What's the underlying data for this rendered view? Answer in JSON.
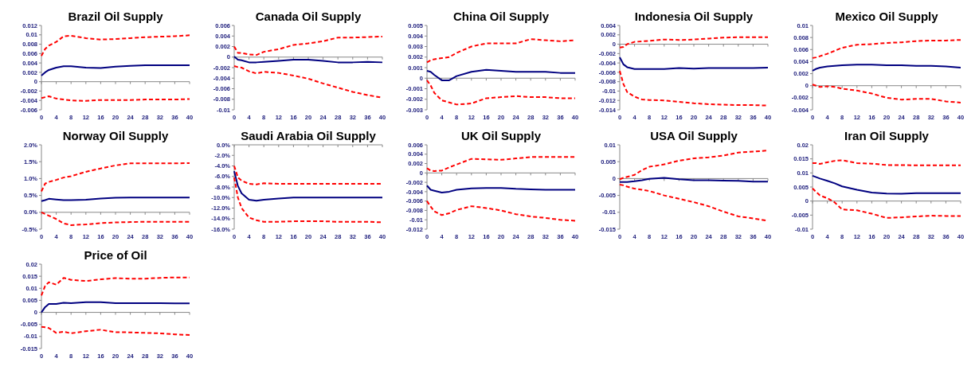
{
  "chart_data": [
    {
      "type": "line",
      "title": "Brazil Oil Supply",
      "x": [
        0,
        1,
        2,
        4,
        6,
        8,
        12,
        16,
        20,
        24,
        28,
        32,
        36,
        40
      ],
      "xlim": [
        0,
        40
      ],
      "xticks": [
        0,
        4,
        8,
        12,
        16,
        20,
        24,
        28,
        32,
        36,
        40
      ],
      "ylim": [
        -0.006,
        0.012
      ],
      "yticks": [
        -0.006,
        -0.004,
        -0.002,
        0,
        0.002,
        0.004,
        0.006,
        0.008,
        0.01,
        0.012
      ],
      "series": [
        {
          "color": "#000080",
          "line_style": "solid",
          "values": [
            0.0013,
            0.002,
            0.0025,
            0.003,
            0.0033,
            0.0033,
            0.003,
            0.0029,
            0.0032,
            0.0034,
            0.0035,
            0.0035,
            0.0035,
            0.0035
          ]
        },
        {
          "color": "#ff0000",
          "line_style": "dashed",
          "values": [
            0.0055,
            0.007,
            0.0077,
            0.0085,
            0.0097,
            0.0098,
            0.0093,
            0.009,
            0.0091,
            0.0093,
            0.0095,
            0.0096,
            0.0097,
            0.0099
          ]
        },
        {
          "color": "#ff0000",
          "line_style": "dashed",
          "values": [
            -0.0035,
            -0.0033,
            -0.0031,
            -0.0036,
            -0.0038,
            -0.004,
            -0.0041,
            -0.0039,
            -0.0039,
            -0.0039,
            -0.0038,
            -0.0038,
            -0.0038,
            -0.0037
          ]
        }
      ]
    },
    {
      "type": "line",
      "title": "Canada Oil Supply",
      "x": [
        0,
        1,
        2,
        4,
        6,
        8,
        12,
        16,
        20,
        24,
        28,
        32,
        36,
        40
      ],
      "xlim": [
        0,
        40
      ],
      "xticks": [
        0,
        4,
        8,
        12,
        16,
        20,
        24,
        28,
        32,
        36,
        40
      ],
      "ylim": [
        -0.01,
        0.006
      ],
      "yticks": [
        -0.01,
        -0.008,
        -0.006,
        -0.004,
        -0.002,
        0,
        0.002,
        0.004,
        0.006
      ],
      "series": [
        {
          "color": "#000080",
          "line_style": "solid",
          "values": [
            0.0001,
            -0.0005,
            -0.0006,
            -0.001,
            -0.001,
            -0.0009,
            -0.0007,
            -0.0005,
            -0.0005,
            -0.0007,
            -0.001,
            -0.001,
            -0.0009,
            -0.001
          ]
        },
        {
          "color": "#ff0000",
          "line_style": "dashed",
          "values": [
            0.002,
            0.0008,
            0.0008,
            0.0005,
            0.0004,
            0.001,
            0.0015,
            0.0023,
            0.0026,
            0.003,
            0.0037,
            0.0037,
            0.0038,
            0.0039
          ]
        },
        {
          "color": "#ff0000",
          "line_style": "dashed",
          "values": [
            -0.0017,
            -0.0019,
            -0.002,
            -0.0027,
            -0.0031,
            -0.0028,
            -0.003,
            -0.0035,
            -0.0041,
            -0.005,
            -0.0058,
            -0.0066,
            -0.0072,
            -0.0077
          ]
        }
      ]
    },
    {
      "type": "line",
      "title": "China Oil Supply",
      "x": [
        0,
        1,
        2,
        4,
        6,
        8,
        12,
        16,
        20,
        24,
        28,
        32,
        36,
        40
      ],
      "xlim": [
        0,
        40
      ],
      "xticks": [
        0,
        4,
        8,
        12,
        16,
        20,
        24,
        28,
        32,
        36,
        40
      ],
      "ylim": [
        -0.003,
        0.005
      ],
      "yticks": [
        -0.003,
        -0.002,
        -0.001,
        0,
        0.001,
        0.002,
        0.003,
        0.004,
        0.005
      ],
      "series": [
        {
          "color": "#000080",
          "line_style": "solid",
          "values": [
            0.0007,
            0.0006,
            0.0003,
            -0.0002,
            -0.0002,
            0.0002,
            0.0006,
            0.0008,
            0.0007,
            0.0006,
            0.0006,
            0.0006,
            0.0005,
            0.0005
          ]
        },
        {
          "color": "#ff0000",
          "line_style": "dashed",
          "values": [
            0.0015,
            0.0017,
            0.0018,
            0.0019,
            0.002,
            0.0024,
            0.003,
            0.0033,
            0.0033,
            0.0033,
            0.0037,
            0.0036,
            0.0035,
            0.0036
          ]
        },
        {
          "color": "#ff0000",
          "line_style": "dashed",
          "values": [
            -0.0002,
            -0.0007,
            -0.0014,
            -0.0021,
            -0.0023,
            -0.0025,
            -0.0024,
            -0.0019,
            -0.0018,
            -0.0017,
            -0.0018,
            -0.0018,
            -0.0019,
            -0.0019
          ]
        }
      ]
    },
    {
      "type": "line",
      "title": "Indonesia Oil Supply",
      "x": [
        0,
        1,
        2,
        4,
        6,
        8,
        12,
        16,
        20,
        24,
        28,
        32,
        36,
        40
      ],
      "xlim": [
        0,
        40
      ],
      "xticks": [
        0,
        4,
        8,
        12,
        16,
        20,
        24,
        28,
        32,
        36,
        40
      ],
      "ylim": [
        -0.014,
        0.004
      ],
      "yticks": [
        -0.014,
        -0.012,
        -0.01,
        -0.008,
        -0.006,
        -0.004,
        -0.002,
        0,
        0.002,
        0.004
      ],
      "series": [
        {
          "color": "#000080",
          "line_style": "solid",
          "values": [
            -0.0028,
            -0.0043,
            -0.0049,
            -0.0053,
            -0.0053,
            -0.0053,
            -0.0053,
            -0.0051,
            -0.0052,
            -0.0051,
            -0.0051,
            -0.0051,
            -0.0051,
            -0.005
          ]
        },
        {
          "color": "#ff0000",
          "line_style": "dashed",
          "values": [
            -0.0007,
            -0.0006,
            0,
            0.0005,
            0.0006,
            0.0007,
            0.001,
            0.0009,
            0.001,
            0.0012,
            0.0014,
            0.0015,
            0.0015,
            0.0015
          ]
        },
        {
          "color": "#ff0000",
          "line_style": "dashed",
          "values": [
            -0.0057,
            -0.0085,
            -0.0102,
            -0.0112,
            -0.0118,
            -0.0119,
            -0.012,
            -0.0123,
            -0.0126,
            -0.0128,
            -0.0129,
            -0.013,
            -0.013,
            -0.0131
          ]
        }
      ]
    },
    {
      "type": "line",
      "title": "Mexico Oil Supply",
      "x": [
        0,
        1,
        2,
        4,
        6,
        8,
        12,
        16,
        20,
        24,
        28,
        32,
        36,
        40
      ],
      "xlim": [
        0,
        40
      ],
      "xticks": [
        0,
        4,
        8,
        12,
        16,
        20,
        24,
        28,
        32,
        36,
        40
      ],
      "ylim": [
        -0.004,
        0.01
      ],
      "yticks": [
        -0.004,
        -0.002,
        0,
        0.002,
        0.004,
        0.006,
        0.008,
        0.01
      ],
      "series": [
        {
          "color": "#000080",
          "line_style": "solid",
          "values": [
            0.0025,
            0.0028,
            0.003,
            0.0032,
            0.0033,
            0.0034,
            0.0035,
            0.0035,
            0.0034,
            0.0034,
            0.0033,
            0.0033,
            0.0032,
            0.003
          ]
        },
        {
          "color": "#ff0000",
          "line_style": "dashed",
          "values": [
            0.0046,
            0.0047,
            0.0049,
            0.0053,
            0.0058,
            0.0063,
            0.0068,
            0.0069,
            0.0071,
            0.0072,
            0.0074,
            0.0075,
            0.0075,
            0.0076
          ]
        },
        {
          "color": "#ff0000",
          "line_style": "dashed",
          "values": [
            0.0002,
            0,
            -0.0002,
            -0.0001,
            -0.0002,
            -0.0005,
            -0.0008,
            -0.0013,
            -0.002,
            -0.0023,
            -0.0022,
            -0.0022,
            -0.0026,
            -0.0028
          ]
        }
      ]
    },
    {
      "type": "line",
      "title": "Norway Oil Supply",
      "x": [
        0,
        1,
        2,
        4,
        6,
        8,
        12,
        16,
        20,
        24,
        28,
        32,
        36,
        40
      ],
      "xlim": [
        0,
        40
      ],
      "xticks": [
        0,
        4,
        8,
        12,
        16,
        20,
        24,
        28,
        32,
        36,
        40
      ],
      "ylim": [
        -0.5,
        2.0
      ],
      "yticks": [
        {
          "value": -0.5,
          "label": "-0.5%"
        },
        {
          "value": 0,
          "label": "0.0%"
        },
        {
          "value": 0.5,
          "label": "0.5%"
        },
        {
          "value": 1,
          "label": "1.0%"
        },
        {
          "value": 1.5,
          "label": "1.5%"
        },
        {
          "value": 2,
          "label": "2.0%"
        }
      ],
      "series": [
        {
          "color": "#000080",
          "line_style": "solid",
          "values": [
            0.33,
            0.36,
            0.4,
            0.38,
            0.36,
            0.36,
            0.37,
            0.41,
            0.43,
            0.44,
            0.44,
            0.44,
            0.44,
            0.44
          ]
        },
        {
          "color": "#ff0000",
          "line_style": "dashed",
          "values": [
            0.62,
            0.85,
            0.9,
            0.96,
            1.03,
            1.07,
            1.2,
            1.3,
            1.39,
            1.45,
            1.45,
            1.45,
            1.45,
            1.46
          ]
        },
        {
          "color": "#ff0000",
          "line_style": "dashed",
          "values": [
            0,
            -0.05,
            -0.1,
            -0.2,
            -0.33,
            -0.38,
            -0.36,
            -0.32,
            -0.3,
            -0.29,
            -0.28,
            -0.28,
            -0.28,
            -0.28
          ]
        }
      ]
    },
    {
      "type": "line",
      "title": "Saudi Arabia Oil Supply",
      "x": [
        0,
        1,
        2,
        4,
        6,
        8,
        12,
        16,
        20,
        24,
        28,
        32,
        36,
        40
      ],
      "xlim": [
        0,
        40
      ],
      "xticks": [
        0,
        4,
        8,
        12,
        16,
        20,
        24,
        28,
        32,
        36,
        40
      ],
      "ylim": [
        -16,
        0
      ],
      "yticks": [
        {
          "value": -16,
          "label": "-16.0%"
        },
        {
          "value": -14,
          "label": "-14.0%"
        },
        {
          "value": -12,
          "label": "-12.0%"
        },
        {
          "value": -10,
          "label": "-10.0%"
        },
        {
          "value": -8,
          "label": "-8.0%"
        },
        {
          "value": -6,
          "label": "-6.0%"
        },
        {
          "value": -4,
          "label": "-4.0%"
        },
        {
          "value": -2,
          "label": "-2.0%"
        },
        {
          "value": 0,
          "label": "0.0%"
        }
      ],
      "series": [
        {
          "color": "#000080",
          "line_style": "solid",
          "values": [
            -5,
            -7.8,
            -9.2,
            -10.4,
            -10.6,
            -10.4,
            -10.2,
            -10,
            -10,
            -10,
            -10,
            -10,
            -10,
            -10
          ]
        },
        {
          "color": "#ff0000",
          "line_style": "dashed",
          "values": [
            -4,
            -6.2,
            -6.8,
            -7.4,
            -7.5,
            -7.3,
            -7.4,
            -7.4,
            -7.4,
            -7.4,
            -7.4,
            -7.4,
            -7.4,
            -7.4
          ]
        },
        {
          "color": "#ff0000",
          "line_style": "dashed",
          "values": [
            -6.2,
            -10,
            -12,
            -13.8,
            -14.3,
            -14.6,
            -14.6,
            -14.5,
            -14.5,
            -14.5,
            -14.6,
            -14.6,
            -14.6,
            -14.7
          ]
        }
      ]
    },
    {
      "type": "line",
      "title": "UK Oil Supply",
      "x": [
        0,
        1,
        2,
        4,
        6,
        8,
        12,
        16,
        20,
        24,
        28,
        32,
        36,
        40
      ],
      "xlim": [
        0,
        40
      ],
      "xticks": [
        0,
        4,
        8,
        12,
        16,
        20,
        24,
        28,
        32,
        36,
        40
      ],
      "ylim": [
        -0.012,
        0.006
      ],
      "yticks": [
        -0.012,
        -0.01,
        -0.008,
        -0.006,
        -0.004,
        -0.002,
        0,
        0.002,
        0.004,
        0.006
      ],
      "series": [
        {
          "color": "#000080",
          "line_style": "solid",
          "values": [
            -0.0027,
            -0.0036,
            -0.0038,
            -0.0042,
            -0.004,
            -0.0036,
            -0.0033,
            -0.0032,
            -0.0032,
            -0.0034,
            -0.0035,
            -0.0036,
            -0.0036,
            -0.0036
          ]
        },
        {
          "color": "#ff0000",
          "line_style": "dashed",
          "values": [
            0.001,
            0.0005,
            0.0004,
            0.0005,
            0.0012,
            0.0018,
            0.003,
            0.0029,
            0.0028,
            0.0031,
            0.0034,
            0.0034,
            0.0034,
            0.0034
          ]
        },
        {
          "color": "#ff0000",
          "line_style": "dashed",
          "values": [
            -0.006,
            -0.0072,
            -0.0082,
            -0.009,
            -0.0086,
            -0.0079,
            -0.0071,
            -0.0075,
            -0.008,
            -0.0088,
            -0.0093,
            -0.0096,
            -0.01,
            -0.0102
          ]
        }
      ]
    },
    {
      "type": "line",
      "title": "USA Oil Supply",
      "x": [
        0,
        1,
        2,
        4,
        6,
        8,
        12,
        16,
        20,
        24,
        28,
        32,
        36,
        40
      ],
      "xlim": [
        0,
        40
      ],
      "xticks": [
        0,
        4,
        8,
        12,
        16,
        20,
        24,
        28,
        32,
        36,
        40
      ],
      "ylim": [
        -0.015,
        0.01
      ],
      "yticks": [
        -0.015,
        -0.01,
        -0.005,
        0,
        0.005,
        0.01
      ],
      "series": [
        {
          "color": "#000080",
          "line_style": "solid",
          "values": [
            -0.001,
            -0.001,
            -0.001,
            -0.0008,
            -0.0005,
            -0.0001,
            0.0002,
            -0.0002,
            -0.0005,
            -0.0005,
            -0.0006,
            -0.0007,
            -0.0009,
            -0.0009
          ]
        },
        {
          "color": "#ff0000",
          "line_style": "dashed",
          "values": [
            -0.0002,
            0.0002,
            0.0005,
            0.0011,
            0.0025,
            0.0035,
            0.0042,
            0.0053,
            0.006,
            0.0063,
            0.0068,
            0.0077,
            0.008,
            0.0083
          ]
        },
        {
          "color": "#ff0000",
          "line_style": "dashed",
          "values": [
            -0.0018,
            -0.002,
            -0.0024,
            -0.003,
            -0.0033,
            -0.0037,
            -0.005,
            -0.006,
            -0.007,
            -0.0082,
            -0.0098,
            -0.0112,
            -0.0118,
            -0.0125
          ]
        }
      ]
    },
    {
      "type": "line",
      "title": "Iran Oil Supply",
      "x": [
        0,
        1,
        2,
        4,
        6,
        8,
        12,
        16,
        20,
        24,
        28,
        32,
        36,
        40
      ],
      "xlim": [
        0,
        40
      ],
      "xticks": [
        0,
        4,
        8,
        12,
        16,
        20,
        24,
        28,
        32,
        36,
        40
      ],
      "ylim": [
        -0.01,
        0.02
      ],
      "yticks": [
        -0.01,
        -0.005,
        0,
        0.005,
        0.01,
        0.015,
        0.02
      ],
      "series": [
        {
          "color": "#000080",
          "line_style": "solid",
          "values": [
            0.009,
            0.0085,
            0.008,
            0.0072,
            0.0063,
            0.0052,
            0.004,
            0.003,
            0.0027,
            0.0026,
            0.0028,
            0.0028,
            0.0028,
            0.0028
          ]
        },
        {
          "color": "#ff0000",
          "line_style": "dashed",
          "values": [
            0.0135,
            0.0135,
            0.0132,
            0.0138,
            0.0143,
            0.0145,
            0.0135,
            0.0133,
            0.0128,
            0.0128,
            0.0127,
            0.0127,
            0.0127,
            0.0127
          ]
        },
        {
          "color": "#ff0000",
          "line_style": "dashed",
          "values": [
            0.0045,
            0.0032,
            0.002,
            0.001,
            -0.0005,
            -0.003,
            -0.0033,
            -0.0045,
            -0.006,
            -0.0058,
            -0.0055,
            -0.0052,
            -0.0053,
            -0.0053
          ]
        }
      ]
    },
    {
      "type": "line",
      "title": "Price of Oil",
      "x": [
        0,
        1,
        2,
        4,
        6,
        8,
        12,
        16,
        20,
        24,
        28,
        32,
        36,
        40
      ],
      "xlim": [
        0,
        40
      ],
      "xticks": [
        0,
        4,
        8,
        12,
        16,
        20,
        24,
        28,
        32,
        36,
        40
      ],
      "ylim": [
        -0.015,
        0.02
      ],
      "yticks": [
        -0.015,
        -0.01,
        -0.005,
        0,
        0.005,
        0.01,
        0.015,
        0.02
      ],
      "series": [
        {
          "color": "#000080",
          "line_style": "solid",
          "values": [
            0,
            0.0022,
            0.0035,
            0.0035,
            0.004,
            0.0038,
            0.0042,
            0.0042,
            0.0038,
            0.0038,
            0.0038,
            0.0038,
            0.0037,
            0.0037
          ]
        },
        {
          "color": "#ff0000",
          "line_style": "dashed",
          "values": [
            0.007,
            0.011,
            0.0125,
            0.0115,
            0.0143,
            0.0135,
            0.013,
            0.0137,
            0.0142,
            0.014,
            0.014,
            0.0143,
            0.0145,
            0.0145
          ]
        },
        {
          "color": "#ff0000",
          "line_style": "dashed",
          "values": [
            -0.006,
            -0.0062,
            -0.0065,
            -0.0085,
            -0.008,
            -0.0087,
            -0.0078,
            -0.0072,
            -0.0082,
            -0.0083,
            -0.0085,
            -0.0087,
            -0.0091,
            -0.0094
          ]
        }
      ]
    }
  ]
}
